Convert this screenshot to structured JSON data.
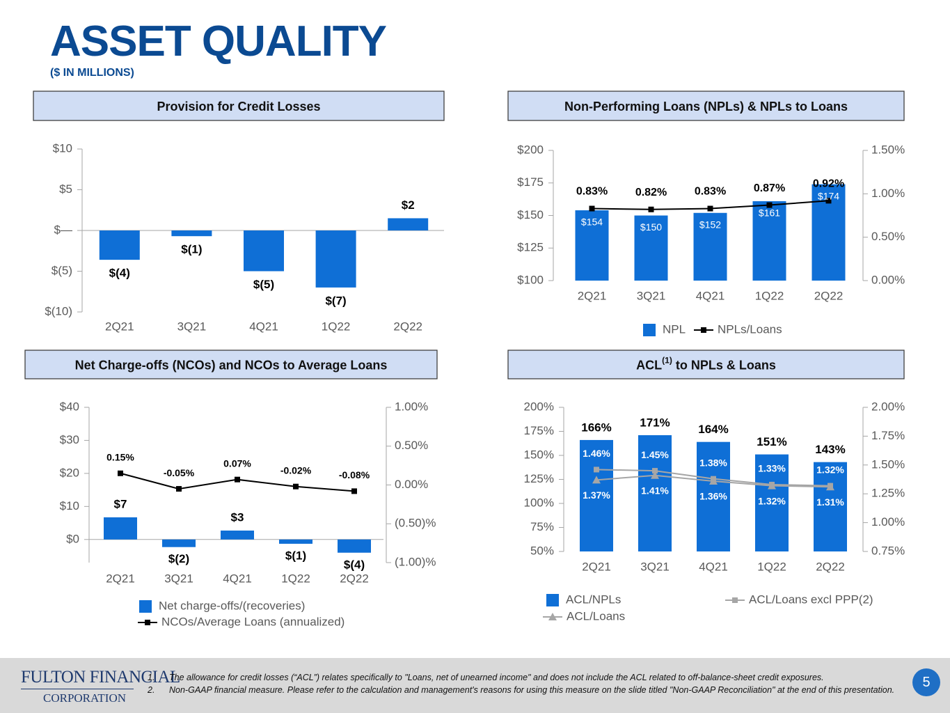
{
  "header": {
    "title": "ASSET QUALITY",
    "subtitle": "($ IN MILLIONS)"
  },
  "chart_data": [
    {
      "type": "bar",
      "title": "Provision for Credit Losses",
      "categories": [
        "2Q21",
        "3Q21",
        "4Q21",
        "1Q22",
        "2Q22"
      ],
      "values": [
        -3.6,
        -0.7,
        -5.0,
        -7.0,
        1.5
      ],
      "value_labels": [
        "$(4)",
        "$(1)",
        "$(5)",
        "$(7)",
        "$2"
      ],
      "color": "#0f6fd6",
      "ylim": [
        -10,
        10
      ],
      "yticks": [
        {
          "value": -10,
          "label": "$(10)"
        },
        {
          "value": -5,
          "label": "$(5)"
        },
        {
          "value": 0,
          "label": "$—"
        },
        {
          "value": 5,
          "label": "$5"
        },
        {
          "value": 10,
          "label": "$10"
        }
      ]
    },
    {
      "type": "combo",
      "title": "Non-Performing Loans (NPLs) & NPLs to Loans",
      "categories": [
        "2Q21",
        "3Q21",
        "4Q21",
        "1Q22",
        "2Q22"
      ],
      "series": [
        {
          "name": "NPL",
          "type": "bar",
          "color": "#0f6fd6",
          "values": [
            154,
            150,
            152,
            161,
            174
          ],
          "value_labels": [
            "$154",
            "$150",
            "$152",
            "$161",
            "$174"
          ]
        },
        {
          "name": "NPLs/Loans",
          "type": "line",
          "axis": "y2",
          "marker": "square",
          "color": "#000000",
          "values": [
            0.83,
            0.82,
            0.83,
            0.87,
            0.92
          ],
          "value_labels": [
            "0.83%",
            "0.82%",
            "0.83%",
            "0.87%",
            "0.92%"
          ]
        }
      ],
      "ylim": [
        100,
        200
      ],
      "yticks": [
        {
          "value": 100,
          "label": "$100"
        },
        {
          "value": 125,
          "label": "$125"
        },
        {
          "value": 150,
          "label": "$150"
        },
        {
          "value": 175,
          "label": "$175"
        },
        {
          "value": 200,
          "label": "$200"
        }
      ],
      "y2lim": [
        0,
        1.5
      ],
      "y2ticks": [
        {
          "value": 0,
          "label": "0.00%"
        },
        {
          "value": 0.5,
          "label": "0.50%"
        },
        {
          "value": 1,
          "label": "1.00%"
        },
        {
          "value": 1.5,
          "label": "1.50%"
        }
      ]
    },
    {
      "type": "combo",
      "title": "Net Charge-offs (NCOs) and NCOs to Average Loans",
      "categories": [
        "2Q21",
        "3Q21",
        "4Q21",
        "1Q22",
        "2Q22"
      ],
      "series": [
        {
          "name": "Net charge-offs/(recoveries)",
          "type": "bar",
          "color": "#0f6fd6",
          "values": [
            6.7,
            -2.3,
            2.7,
            -1.3,
            -4.0
          ],
          "value_labels": [
            "$7",
            "$(2)",
            "$3",
            "$(1)",
            "$(4)"
          ]
        },
        {
          "name": "NCOs/Average Loans (annualized)",
          "type": "line",
          "axis": "y2",
          "marker": "square",
          "color": "#000000",
          "values": [
            0.15,
            -0.05,
            0.07,
            -0.02,
            -0.08
          ],
          "value_labels": [
            "0.15%",
            "-0.05%",
            "0.07%",
            "-0.02%",
            "-0.08%"
          ]
        }
      ],
      "ylim": [
        -7,
        40
      ],
      "yticks": [
        {
          "value": 0,
          "label": "$0"
        },
        {
          "value": 10,
          "label": "$10"
        },
        {
          "value": 20,
          "label": "$20"
        },
        {
          "value": 30,
          "label": "$30"
        },
        {
          "value": 40,
          "label": "$40"
        }
      ],
      "y2lim": [
        -1,
        1
      ],
      "y2ticks": [
        {
          "value": -1,
          "label": "(1.00)%"
        },
        {
          "value": -0.5,
          "label": "(0.50)%"
        },
        {
          "value": 0,
          "label": "0.00%"
        },
        {
          "value": 0.5,
          "label": "0.50%"
        },
        {
          "value": 1,
          "label": "1.00%"
        }
      ]
    },
    {
      "type": "combo",
      "title": "ACL",
      "title_sup": "(1)",
      "title_rest": " to NPLs & Loans",
      "categories": [
        "2Q21",
        "3Q21",
        "4Q21",
        "1Q22",
        "2Q22"
      ],
      "series": [
        {
          "name": "ACL/NPLs",
          "type": "bar",
          "color": "#0f6fd6",
          "values": [
            166,
            171,
            164,
            151,
            143
          ],
          "value_labels": [
            "166%",
            "171%",
            "164%",
            "151%",
            "143%"
          ]
        },
        {
          "name": "ACL/Loans excl PPP(2)",
          "type": "line",
          "axis": "y2",
          "marker": "square",
          "color": "#a6a6a6",
          "values": [
            1.46,
            1.45,
            1.38,
            1.33,
            1.32
          ],
          "value_labels": [
            "1.46%",
            "1.45%",
            "1.38%",
            "1.33%",
            "1.32%"
          ]
        },
        {
          "name": "ACL/Loans",
          "type": "line",
          "axis": "y2",
          "marker": "triangle",
          "color": "#a6a6a6",
          "values": [
            1.37,
            1.41,
            1.36,
            1.32,
            1.31
          ],
          "value_labels": [
            "1.37%",
            "1.41%",
            "1.36%",
            "1.32%",
            "1.31%"
          ]
        }
      ],
      "ylim": [
        50,
        200
      ],
      "yticks": [
        {
          "value": 50,
          "label": "50%"
        },
        {
          "value": 75,
          "label": "75%"
        },
        {
          "value": 100,
          "label": "100%"
        },
        {
          "value": 125,
          "label": "125%"
        },
        {
          "value": 150,
          "label": "150%"
        },
        {
          "value": 175,
          "label": "175%"
        },
        {
          "value": 200,
          "label": "200%"
        }
      ],
      "y2lim": [
        0.75,
        2
      ],
      "y2ticks": [
        {
          "value": 0.75,
          "label": "0.75%"
        },
        {
          "value": 1,
          "label": "1.00%"
        },
        {
          "value": 1.25,
          "label": "1.25%"
        },
        {
          "value": 1.5,
          "label": "1.50%"
        },
        {
          "value": 1.75,
          "label": "1.75%"
        },
        {
          "value": 2,
          "label": "2.00%"
        }
      ]
    }
  ],
  "footer": {
    "logo": [
      "FULTON FINANCIAL",
      "CORPORATION"
    ],
    "notes": [
      {
        "number": "1.",
        "text": "The allowance for credit losses (“ACL”) relates specifically to \"Loans, net of unearned income\" and does not include the ACL related to off-balance-sheet credit exposures."
      },
      {
        "number": "2.",
        "text": "Non-GAAP financial measure.  Please refer to the calculation and management's reasons for using this measure on the slide titled \"Non-GAAP Reconciliation\" at the end of this presentation."
      }
    ],
    "page": "5"
  }
}
